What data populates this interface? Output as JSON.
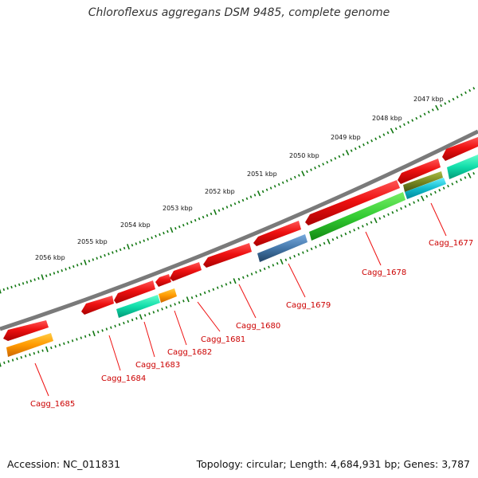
{
  "title": "Chloroflexus aggregans DSM 9485, complete genome",
  "footer": {
    "accession": "Accession: NC_011831",
    "summary": "Topology: circular; Length: 4,684,931 bp; Genes: 3,787"
  },
  "scale_labels": [
    "2047 kbp",
    "2048 kbp",
    "2049 kbp",
    "2050 kbp",
    "2051 kbp",
    "2052 kbp",
    "2053 kbp",
    "2054 kbp",
    "2055 kbp",
    "2056 kbp"
  ],
  "gene_labels": [
    "Cagg_1677",
    "Cagg_1678",
    "Cagg_1679",
    "Cagg_1680",
    "Cagg_1681",
    "Cagg_1682",
    "Cagg_1683",
    "Cagg_1684",
    "Cagg_1685"
  ],
  "colors": {
    "backbone": "#808080",
    "cds": "#ee1111",
    "orange": "#ff9900",
    "teal": "#11ddaa",
    "blue": "#4477aa",
    "green": "#33cc33",
    "olive": "#778822",
    "cyan": "#11bbcc",
    "ticks": "#117711",
    "label": "#cc0000"
  }
}
